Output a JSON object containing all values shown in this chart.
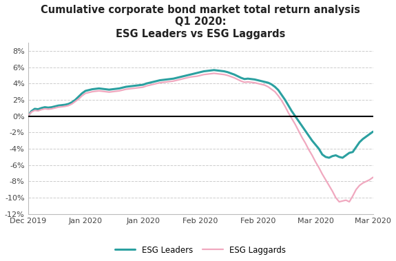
{
  "title_line1": "Cumulative corporate bond market total return analysis",
  "title_line2": "Q1 2020:",
  "title_line3": "ESG Leaders vs ESG Laggards",
  "title_fontsize": 10.5,
  "ylim": [
    -12,
    9
  ],
  "yticks": [
    -12,
    -10,
    -8,
    -6,
    -4,
    -2,
    0,
    2,
    4,
    6,
    8
  ],
  "xtick_labels": [
    "Dec 2019",
    "Jan 2020",
    "Jan 2020",
    "Feb 2020",
    "Feb 2020",
    "Mar 2020",
    "Mar 2020"
  ],
  "background_color": "#ffffff",
  "grid_color": "#cccccc",
  "esg_leaders_color": "#2ba0a0",
  "esg_laggards_color": "#f0a8bf",
  "legend_labels": [
    "ESG Leaders",
    "ESG Laggards"
  ],
  "esg_leaders": [
    0.0,
    0.6,
    0.9,
    0.85,
    1.0,
    1.1,
    1.05,
    1.1,
    1.2,
    1.3,
    1.35,
    1.4,
    1.5,
    1.7,
    2.0,
    2.4,
    2.8,
    3.1,
    3.2,
    3.3,
    3.35,
    3.4,
    3.35,
    3.3,
    3.25,
    3.3,
    3.35,
    3.4,
    3.5,
    3.6,
    3.65,
    3.7,
    3.75,
    3.8,
    3.85,
    4.0,
    4.1,
    4.2,
    4.3,
    4.4,
    4.45,
    4.5,
    4.55,
    4.6,
    4.7,
    4.8,
    4.9,
    5.0,
    5.1,
    5.2,
    5.3,
    5.4,
    5.5,
    5.55,
    5.6,
    5.65,
    5.6,
    5.55,
    5.5,
    5.4,
    5.25,
    5.1,
    4.9,
    4.7,
    4.55,
    4.6,
    4.55,
    4.5,
    4.4,
    4.3,
    4.2,
    4.1,
    3.9,
    3.6,
    3.2,
    2.6,
    2.0,
    1.3,
    0.6,
    0.0,
    -0.6,
    -1.2,
    -1.8,
    -2.4,
    -3.0,
    -3.5,
    -4.0,
    -4.7,
    -5.0,
    -5.1,
    -4.9,
    -4.8,
    -5.0,
    -5.1,
    -4.8,
    -4.5,
    -4.4,
    -3.8,
    -3.2,
    -2.8,
    -2.5,
    -2.2,
    -1.9
  ],
  "esg_laggards": [
    0.0,
    0.5,
    0.7,
    0.65,
    0.8,
    0.9,
    0.85,
    0.9,
    1.0,
    1.1,
    1.15,
    1.2,
    1.3,
    1.5,
    1.8,
    2.1,
    2.5,
    2.8,
    2.9,
    3.0,
    3.05,
    3.1,
    3.05,
    3.0,
    2.95,
    3.0,
    3.05,
    3.1,
    3.2,
    3.3,
    3.35,
    3.4,
    3.45,
    3.5,
    3.55,
    3.7,
    3.8,
    3.9,
    4.0,
    4.1,
    4.15,
    4.2,
    4.25,
    4.3,
    4.4,
    4.5,
    4.6,
    4.7,
    4.8,
    4.85,
    4.9,
    5.0,
    5.1,
    5.15,
    5.2,
    5.25,
    5.2,
    5.15,
    5.1,
    5.0,
    4.85,
    4.7,
    4.5,
    4.3,
    4.15,
    4.2,
    4.15,
    4.1,
    4.0,
    3.9,
    3.8,
    3.6,
    3.3,
    3.0,
    2.5,
    1.9,
    1.2,
    0.4,
    -0.3,
    -1.0,
    -1.8,
    -2.6,
    -3.3,
    -4.1,
    -4.8,
    -5.6,
    -6.3,
    -7.1,
    -7.8,
    -8.5,
    -9.2,
    -10.0,
    -10.5,
    -10.4,
    -10.3,
    -10.5,
    -9.8,
    -9.0,
    -8.5,
    -8.2,
    -8.0,
    -7.8,
    -7.5
  ]
}
